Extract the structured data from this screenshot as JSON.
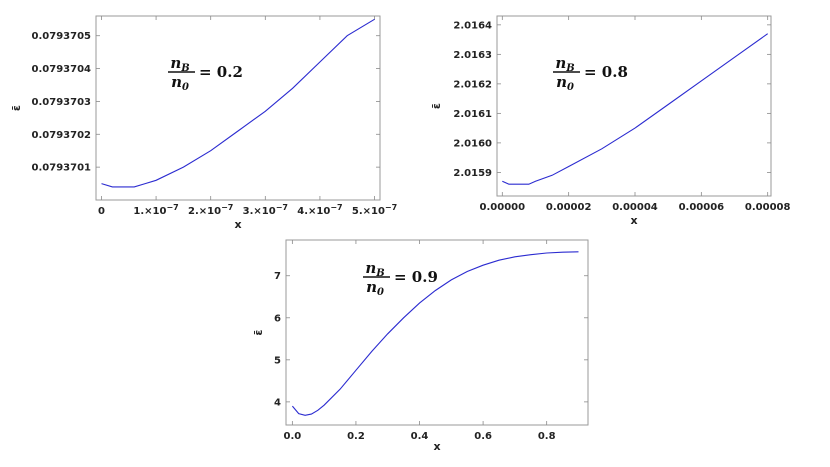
{
  "chart_data": [
    {
      "type": "line",
      "xlabel": "x",
      "ylabel": "ε̄",
      "annotation": {
        "numerator": "n",
        "numerator_sub": "B",
        "denominator": "n",
        "denominator_sub": "0",
        "value": "= 0.2"
      },
      "xlim": [
        -1e-08,
        5.1e-07
      ],
      "ylim": [
        0.07937,
        0.07937056
      ],
      "xticks": [
        0,
        1e-07,
        2e-07,
        3e-07,
        4e-07,
        5e-07
      ],
      "xticklabels": [
        {
          "mant": "0",
          "exp": ""
        },
        {
          "mant": "1.×10",
          "exp": "−7"
        },
        {
          "mant": "2.×10",
          "exp": "−7"
        },
        {
          "mant": "3.×10",
          "exp": "−7"
        },
        {
          "mant": "4.×10",
          "exp": "−7"
        },
        {
          "mant": "5.×10",
          "exp": "−7"
        }
      ],
      "yticks": [
        0.0793701,
        0.0793702,
        0.0793703,
        0.0793704,
        0.0793705
      ],
      "yticklabels": [
        "0.0793701",
        "0.0793702",
        "0.0793703",
        "0.0793704",
        "0.0793705"
      ],
      "series": [
        {
          "x": [
            0,
            2e-08,
            4e-08,
            6e-08,
            8e-08,
            1e-07,
            1.5e-07,
            2e-07,
            2.5e-07,
            3e-07,
            3.5e-07,
            4e-07,
            4.5e-07,
            5e-07
          ],
          "y": [
            0.07937005,
            0.07937004,
            0.07937004,
            0.07937004,
            0.07937005,
            0.07937006,
            0.0793701,
            0.07937015,
            0.07937021,
            0.07937027,
            0.07937034,
            0.07937042,
            0.0793705,
            0.07937055
          ]
        }
      ]
    },
    {
      "type": "line",
      "xlabel": "x",
      "ylabel": "ε̄",
      "annotation": {
        "numerator": "n",
        "numerator_sub": "B",
        "denominator": "n",
        "denominator_sub": "0",
        "value": "= 0.8"
      },
      "xlim": [
        -1.6e-06,
        8.1e-05
      ],
      "ylim": [
        2.01582,
        2.01643
      ],
      "xticks": [
        0,
        2e-05,
        4e-05,
        6e-05,
        8e-05
      ],
      "xticklabels": [
        {
          "mant": "0.00000",
          "exp": ""
        },
        {
          "mant": "0.00002",
          "exp": ""
        },
        {
          "mant": "0.00004",
          "exp": ""
        },
        {
          "mant": "0.00006",
          "exp": ""
        },
        {
          "mant": "0.00008",
          "exp": ""
        }
      ],
      "yticks": [
        2.0159,
        2.016,
        2.0161,
        2.0162,
        2.0163,
        2.0164
      ],
      "yticklabels": [
        "2.0159",
        "2.0160",
        "2.0161",
        "2.0162",
        "2.0163",
        "2.0164"
      ],
      "series": [
        {
          "x": [
            0,
            2e-06,
            4e-06,
            6e-06,
            8e-06,
            1e-05,
            1.5e-05,
            2e-05,
            3e-05,
            4e-05,
            5e-05,
            6e-05,
            7e-05,
            8e-05
          ],
          "y": [
            2.01587,
            2.01586,
            2.01586,
            2.01586,
            2.01586,
            2.01587,
            2.01589,
            2.01592,
            2.01598,
            2.01605,
            2.01613,
            2.01621,
            2.01629,
            2.01637
          ]
        }
      ]
    },
    {
      "type": "line",
      "xlabel": "x",
      "ylabel": "ε̄",
      "annotation": {
        "numerator": "n",
        "numerator_sub": "B",
        "denominator": "n",
        "denominator_sub": "0",
        "value": "= 0.9"
      },
      "xlim": [
        -0.02,
        0.93
      ],
      "ylim": [
        3.45,
        7.85
      ],
      "xticks": [
        0,
        0.2,
        0.4,
        0.6,
        0.8
      ],
      "xticklabels": [
        {
          "mant": "0.0",
          "exp": ""
        },
        {
          "mant": "0.2",
          "exp": ""
        },
        {
          "mant": "0.4",
          "exp": ""
        },
        {
          "mant": "0.6",
          "exp": ""
        },
        {
          "mant": "0.8",
          "exp": ""
        }
      ],
      "yticks": [
        4,
        5,
        6,
        7
      ],
      "yticklabels": [
        "4",
        "5",
        "6",
        "7"
      ],
      "series": [
        {
          "x": [
            0,
            0.02,
            0.04,
            0.06,
            0.08,
            0.1,
            0.15,
            0.2,
            0.25,
            0.3,
            0.35,
            0.4,
            0.45,
            0.5,
            0.55,
            0.6,
            0.65,
            0.7,
            0.75,
            0.8,
            0.85,
            0.9
          ],
          "y": [
            3.9,
            3.72,
            3.68,
            3.71,
            3.8,
            3.92,
            4.3,
            4.75,
            5.2,
            5.62,
            6.0,
            6.35,
            6.65,
            6.9,
            7.1,
            7.25,
            7.37,
            7.45,
            7.5,
            7.54,
            7.56,
            7.57
          ]
        }
      ]
    }
  ]
}
